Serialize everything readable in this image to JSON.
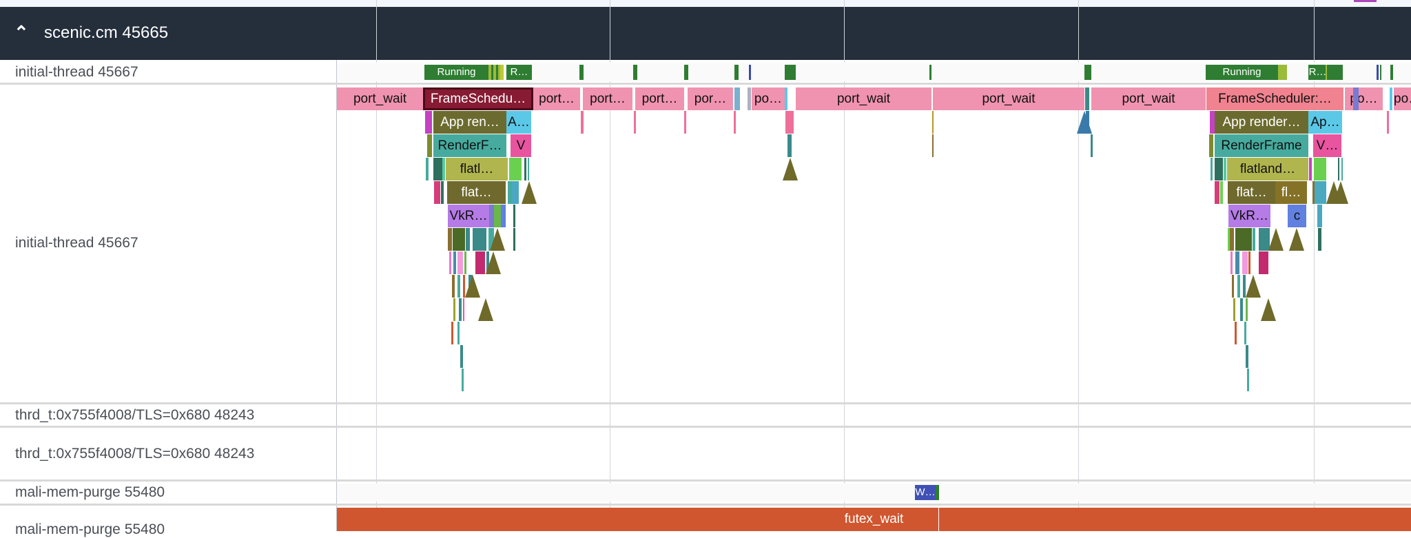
{
  "process": {
    "title": "scenic.cm 45665",
    "collapse_icon": "chevron-up-icon",
    "header_color": "#252f3c"
  },
  "tracks": [
    {
      "label": "initial-thread 45667"
    },
    {
      "label": "initial-thread 45667"
    },
    {
      "label": "thrd_t:0x755f4008/TLS=0x680 48243"
    },
    {
      "label": "thrd_t:0x755f4008/TLS=0x680 48243"
    },
    {
      "label": "mali-mem-purge 55480"
    },
    {
      "label": "mali-mem-purge 55480"
    }
  ],
  "thread_state": [
    {
      "label": "Running",
      "color": "#2e7d32"
    },
    {
      "label": "R…",
      "color": "#2e7d32"
    },
    {
      "label": "Running",
      "color": "#2e7d32"
    },
    {
      "label": "R…",
      "color": "#2e7d32"
    }
  ],
  "slices": [
    {
      "label": "port_wait",
      "color": "#f093b0",
      "text": "#111"
    },
    {
      "label": "FrameSchedu…",
      "color": "#861b33",
      "text": "#fff",
      "selected": true
    },
    {
      "label": "port…",
      "color": "#f093b0",
      "text": "#111"
    },
    {
      "label": "port…",
      "color": "#f093b0",
      "text": "#111"
    },
    {
      "label": "port…",
      "color": "#f093b0",
      "text": "#111"
    },
    {
      "label": "por…",
      "color": "#f093b0",
      "text": "#111"
    },
    {
      "label": "po…",
      "color": "#f093b0",
      "text": "#111"
    },
    {
      "label": "port_wait",
      "color": "#f093b0",
      "text": "#111"
    },
    {
      "label": "port_wait",
      "color": "#f093b0",
      "text": "#111"
    },
    {
      "label": "port_wait",
      "color": "#f093b0",
      "text": "#111"
    },
    {
      "label": "FrameScheduler:…",
      "color": "#f0838f",
      "text": "#111"
    },
    {
      "label": "po…",
      "color": "#f093b0",
      "text": "#111"
    },
    {
      "label": "po…",
      "color": "#f093b0",
      "text": "#111"
    },
    {
      "label": "App ren…",
      "color": "#6c6b2f",
      "text": "#fff"
    },
    {
      "label": "A…",
      "color": "#5bc8e8",
      "text": "#111"
    },
    {
      "label": "RenderF…",
      "color": "#46ab9e",
      "text": "#111"
    },
    {
      "label": "V",
      "color": "#e9549f",
      "text": "#111"
    },
    {
      "label": "flatl…",
      "color": "#b1b54e",
      "text": "#111"
    },
    {
      "label": "flat…",
      "color": "#70692d",
      "text": "#fff"
    },
    {
      "label": "VkR…",
      "color": "#b57be6",
      "text": "#111"
    },
    {
      "label": "App render…",
      "color": "#6c6b2f",
      "text": "#fff"
    },
    {
      "label": "Ap…",
      "color": "#5bc8e8",
      "text": "#111"
    },
    {
      "label": "RenderFrame",
      "color": "#46ab9e",
      "text": "#111"
    },
    {
      "label": "V…",
      "color": "#e9549f",
      "text": "#111"
    },
    {
      "label": "flatland…",
      "color": "#b1b54e",
      "text": "#111"
    },
    {
      "label": "flat…",
      "color": "#70692d",
      "text": "#fff"
    },
    {
      "label": "fl…",
      "color": "#857227",
      "text": "#fff"
    },
    {
      "label": "VkR…",
      "color": "#b57be6",
      "text": "#111"
    },
    {
      "label": "c",
      "color": "#6280e0",
      "text": "#111"
    }
  ],
  "mali_state": [
    {
      "label": "W…",
      "color": "#3f51b5"
    }
  ],
  "mali_slices": [
    {
      "label": "futex_wait",
      "color": "#d0562f"
    }
  ]
}
